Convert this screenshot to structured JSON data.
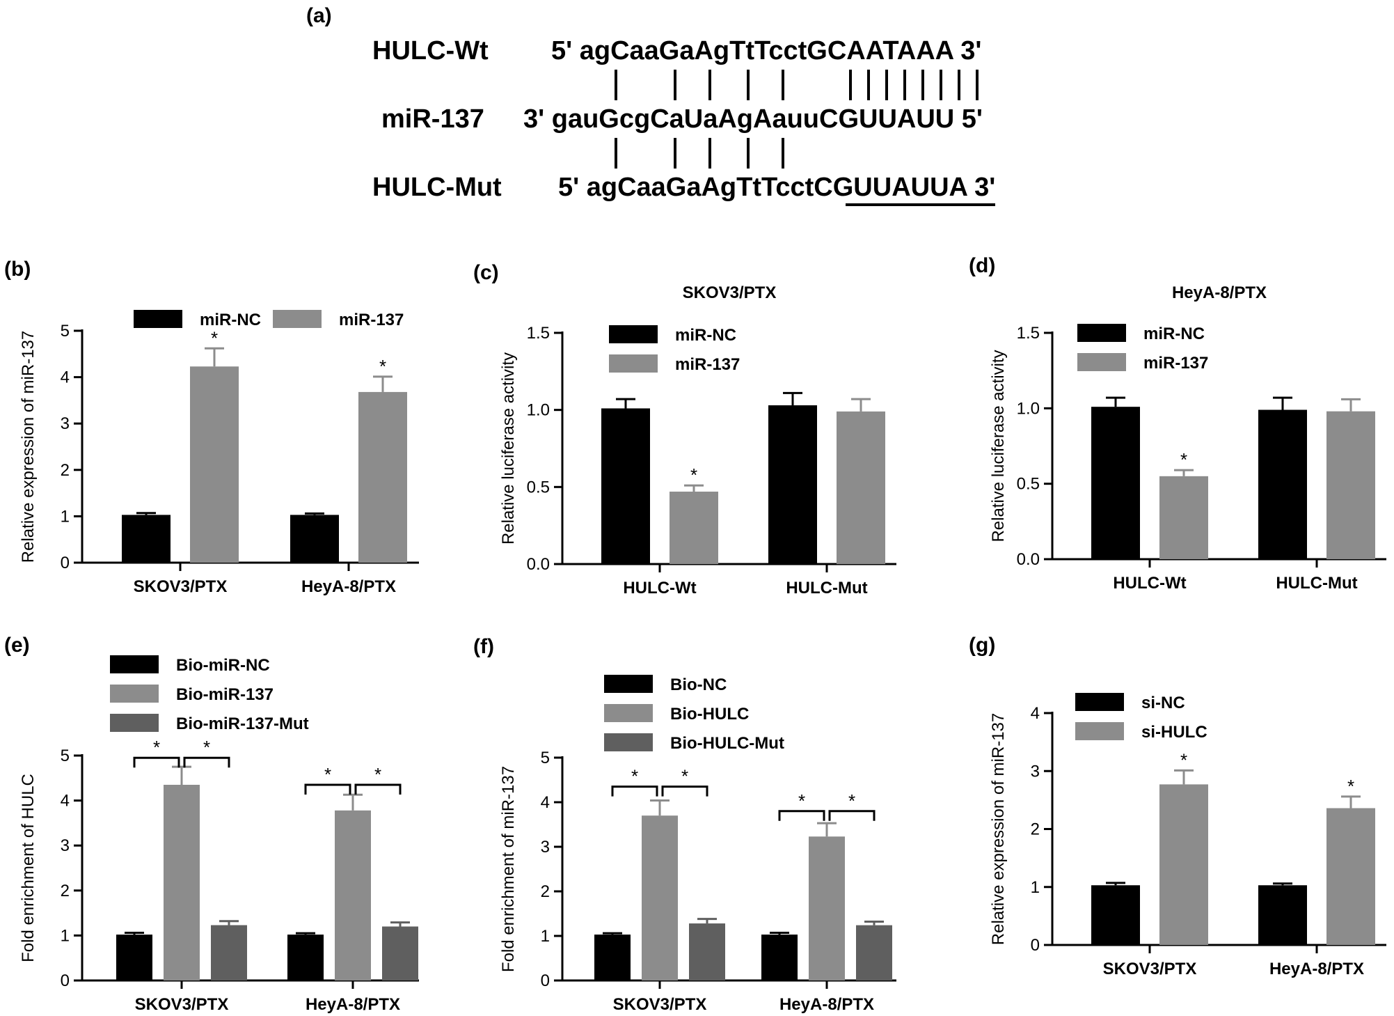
{
  "panel_a": {
    "label": "(a)",
    "rows": [
      {
        "name": "HULC-Wt",
        "seq": "5' agCaaGaAgTtTcctGCAATAAA 3'"
      },
      {
        "name": "miR-137",
        "seq": "3' gauGcgCaUaAgAauuCGUUAUU 5'"
      },
      {
        "name": "HULC-Mut",
        "seq": "5' agCaaGaAgTtTcctCGUUAUUA 3'"
      }
    ]
  },
  "colors": {
    "black": "#000000",
    "light_gray": "#8c8c8c",
    "dark_gray": "#5f5f5f"
  },
  "chart_data": [
    {
      "id": "b",
      "label": "(b)",
      "type": "bar",
      "title": "",
      "ylabel": "Relative expression of miR-137",
      "xlabel": "",
      "ylim": [
        0,
        5
      ],
      "yticks": [
        "0",
        "1",
        "2",
        "3",
        "4",
        "5"
      ],
      "categories": [
        "SKOV3/PTX",
        "HeyA-8/PTX"
      ],
      "series": [
        {
          "name": "miR-NC",
          "color": "#000000",
          "values": [
            1.03,
            1.03
          ],
          "errors": [
            0.04,
            0.03
          ]
        },
        {
          "name": "miR-137",
          "color": "#8c8c8c",
          "values": [
            4.23,
            3.68
          ],
          "errors": [
            0.39,
            0.33
          ]
        }
      ],
      "annotations": [
        {
          "category": 0,
          "series": 1,
          "text": "*"
        },
        {
          "category": 1,
          "series": 1,
          "text": "*"
        }
      ],
      "legend": "top-horizontal"
    },
    {
      "id": "c",
      "label": "(c)",
      "type": "bar",
      "title": "SKOV3/PTX",
      "ylabel": "Relative luciferase activity",
      "xlabel": "",
      "ylim": [
        0,
        1.5
      ],
      "yticks": [
        "0.0",
        "0.5",
        "1.0",
        "1.5"
      ],
      "categories": [
        "HULC-Wt",
        "HULC-Mut"
      ],
      "series": [
        {
          "name": "miR-NC",
          "color": "#000000",
          "values": [
            1.01,
            1.03
          ],
          "errors": [
            0.06,
            0.08
          ]
        },
        {
          "name": "miR-137",
          "color": "#8c8c8c",
          "values": [
            0.47,
            0.99
          ],
          "errors": [
            0.04,
            0.08
          ]
        }
      ],
      "annotations": [
        {
          "category": 0,
          "series": 1,
          "text": "*"
        }
      ],
      "legend": "top-left"
    },
    {
      "id": "d",
      "label": "(d)",
      "type": "bar",
      "title": "HeyA-8/PTX",
      "ylabel": "Relative luciferase activity",
      "xlabel": "",
      "ylim": [
        0,
        1.5
      ],
      "yticks": [
        "0.0",
        "0.5",
        "1.0",
        "1.5"
      ],
      "categories": [
        "HULC-Wt",
        "HULC-Mut"
      ],
      "series": [
        {
          "name": "miR-NC",
          "color": "#000000",
          "values": [
            1.01,
            0.99
          ],
          "errors": [
            0.06,
            0.08
          ]
        },
        {
          "name": "miR-137",
          "color": "#8c8c8c",
          "values": [
            0.55,
            0.98
          ],
          "errors": [
            0.04,
            0.08
          ]
        }
      ],
      "annotations": [
        {
          "category": 0,
          "series": 1,
          "text": "*"
        }
      ],
      "legend": "top-left"
    },
    {
      "id": "e",
      "label": "(e)",
      "type": "bar",
      "title": "",
      "ylabel": "Fold enrichment of HULC",
      "xlabel": "",
      "ylim": [
        0,
        5
      ],
      "yticks": [
        "0",
        "1",
        "2",
        "3",
        "4",
        "5"
      ],
      "categories": [
        "SKOV3/PTX",
        "HeyA-8/PTX"
      ],
      "series": [
        {
          "name": "Bio-miR-NC",
          "color": "#000000",
          "values": [
            1.02,
            1.02
          ],
          "errors": [
            0.04,
            0.03
          ]
        },
        {
          "name": "Bio-miR-137",
          "color": "#8c8c8c",
          "values": [
            4.35,
            3.78
          ],
          "errors": [
            0.4,
            0.35
          ]
        },
        {
          "name": "Bio-miR-137-Mut",
          "color": "#5f5f5f",
          "values": [
            1.23,
            1.2
          ],
          "errors": [
            0.09,
            0.09
          ]
        }
      ],
      "brackets": [
        {
          "category": 0,
          "pairs": [
            [
              0,
              1
            ],
            [
              1,
              2
            ]
          ],
          "text": "*",
          "level": 4.95
        },
        {
          "category": 1,
          "pairs": [
            [
              0,
              1
            ],
            [
              1,
              2
            ]
          ],
          "text": "*",
          "level": 4.35
        }
      ],
      "legend": "top-left"
    },
    {
      "id": "f",
      "label": "(f)",
      "type": "bar",
      "title": "",
      "ylabel": "Fold enrichment of miR-137",
      "xlabel": "",
      "ylim": [
        0,
        5
      ],
      "yticks": [
        "0",
        "1",
        "2",
        "3",
        "4",
        "5"
      ],
      "categories": [
        "SKOV3/PTX",
        "HeyA-8/PTX"
      ],
      "series": [
        {
          "name": "Bio-NC",
          "color": "#000000",
          "values": [
            1.03,
            1.03
          ],
          "errors": [
            0.03,
            0.04
          ]
        },
        {
          "name": "Bio-HULC",
          "color": "#8c8c8c",
          "values": [
            3.7,
            3.23
          ],
          "errors": [
            0.34,
            0.3
          ]
        },
        {
          "name": "Bio-HULC-Mut",
          "color": "#5f5f5f",
          "values": [
            1.28,
            1.24
          ],
          "errors": [
            0.1,
            0.08
          ]
        }
      ],
      "brackets": [
        {
          "category": 0,
          "pairs": [
            [
              0,
              1
            ],
            [
              1,
              2
            ]
          ],
          "text": "*",
          "level": 4.35
        },
        {
          "category": 1,
          "pairs": [
            [
              0,
              1
            ],
            [
              1,
              2
            ]
          ],
          "text": "*",
          "level": 3.8
        }
      ],
      "legend": "top-left"
    },
    {
      "id": "g",
      "label": "(g)",
      "type": "bar",
      "title": "",
      "ylabel": "Relative expression of miR-137",
      "xlabel": "",
      "ylim": [
        0,
        4
      ],
      "yticks": [
        "0",
        "1",
        "2",
        "3",
        "4"
      ],
      "categories": [
        "SKOV3/PTX",
        "HeyA-8/PTX"
      ],
      "series": [
        {
          "name": "si-NC",
          "color": "#000000",
          "values": [
            1.03,
            1.03
          ],
          "errors": [
            0.04,
            0.03
          ]
        },
        {
          "name": "si-HULC",
          "color": "#8c8c8c",
          "values": [
            2.77,
            2.36
          ],
          "errors": [
            0.24,
            0.2
          ]
        }
      ],
      "annotations": [
        {
          "category": 0,
          "series": 1,
          "text": "*"
        },
        {
          "category": 1,
          "series": 1,
          "text": "*"
        }
      ],
      "legend": "top-left"
    }
  ]
}
